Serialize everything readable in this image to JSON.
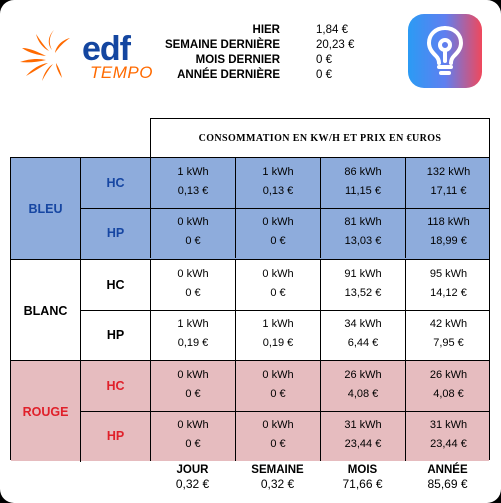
{
  "brand": {
    "name": "edf",
    "subtitle": "TEMPO"
  },
  "summary": [
    {
      "label": "HIER",
      "value": "1,84 €"
    },
    {
      "label": "SEMAINE DERNIÈRE",
      "value": "20,23 €"
    },
    {
      "label": "MOIS DERNIER",
      "value": "0 €"
    },
    {
      "label": "ANNÉE DERNIÈRE",
      "value": "0 €"
    }
  ],
  "table": {
    "header": "CONSOMMATION EN KW/H ET PRIX EN €UROS",
    "bands": [
      {
        "name": "BLEU",
        "bg": "#8eacdc",
        "text_color": "#1646a2",
        "rows": [
          {
            "label": "HC",
            "cells": [
              {
                "kwh": "1 kWh",
                "eur": "0,13 €"
              },
              {
                "kwh": "1 kWh",
                "eur": "0,13 €"
              },
              {
                "kwh": "86 kWh",
                "eur": "11,15 €"
              },
              {
                "kwh": "132 kWh",
                "eur": "17,11 €"
              }
            ]
          },
          {
            "label": "HP",
            "cells": [
              {
                "kwh": "0 kWh",
                "eur": "0 €"
              },
              {
                "kwh": "0 kWh",
                "eur": "0 €"
              },
              {
                "kwh": "81 kWh",
                "eur": "13,03 €"
              },
              {
                "kwh": "118 kWh",
                "eur": "18,99 €"
              }
            ]
          }
        ]
      },
      {
        "name": "BLANC",
        "bg": "#ffffff",
        "text_color": "#000000",
        "rows": [
          {
            "label": "HC",
            "cells": [
              {
                "kwh": "0 kWh",
                "eur": "0 €"
              },
              {
                "kwh": "0 kWh",
                "eur": "0 €"
              },
              {
                "kwh": "91 kWh",
                "eur": "13,52 €"
              },
              {
                "kwh": "95 kWh",
                "eur": "14,12 €"
              }
            ]
          },
          {
            "label": "HP",
            "cells": [
              {
                "kwh": "1 kWh",
                "eur": "0,19 €"
              },
              {
                "kwh": "1 kWh",
                "eur": "0,19 €"
              },
              {
                "kwh": "34 kWh",
                "eur": "6,44 €"
              },
              {
                "kwh": "42 kWh",
                "eur": "7,95 €"
              }
            ]
          }
        ]
      },
      {
        "name": "ROUGE",
        "bg": "#e6bcbf",
        "text_color": "#e0202a",
        "rows": [
          {
            "label": "HC",
            "cells": [
              {
                "kwh": "0 kWh",
                "eur": "0 €"
              },
              {
                "kwh": "0 kWh",
                "eur": "0 €"
              },
              {
                "kwh": "26 kWh",
                "eur": "4,08 €"
              },
              {
                "kwh": "26 kWh",
                "eur": "4,08 €"
              }
            ]
          },
          {
            "label": "HP",
            "cells": [
              {
                "kwh": "0 kWh",
                "eur": "0 €"
              },
              {
                "kwh": "0 kWh",
                "eur": "0 €"
              },
              {
                "kwh": "31 kWh",
                "eur": "23,44 €"
              },
              {
                "kwh": "31 kWh",
                "eur": "23,44 €"
              }
            ]
          }
        ]
      }
    ],
    "footer": [
      {
        "label": "JOUR",
        "value": "0,32 €"
      },
      {
        "label": "SEMAINE",
        "value": "0,32 €"
      },
      {
        "label": "MOIS",
        "value": "71,66 €"
      },
      {
        "label": "ANNÉE",
        "value": "85,69 €"
      }
    ]
  },
  "colors": {
    "edf_blue": "#1446a0",
    "edf_orange": "#ff6a00"
  },
  "icons": {
    "logo": "edf-sun-logo-icon",
    "app": "lightbulb-app-icon"
  }
}
